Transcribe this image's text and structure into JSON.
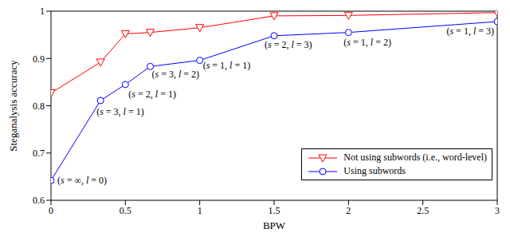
{
  "chart_data": {
    "type": "line",
    "x_label": "BPW",
    "y_label": "Steganalysis accuracy",
    "x": [
      0,
      0.333,
      0.5,
      0.667,
      1,
      1.5,
      2,
      3
    ],
    "xlim": [
      0,
      3
    ],
    "xticks": [
      0,
      0.5,
      1,
      1.5,
      2,
      2.5,
      3
    ],
    "ylim": [
      0.6,
      1
    ],
    "yticks": [
      0.6,
      0.7,
      0.8,
      0.9,
      1
    ],
    "grid": false,
    "legend": "lower right",
    "series": [
      {
        "name": "Not using subwords (i.e., word-level)",
        "color": "#ff0000",
        "marker": "triangle-down",
        "line_style": "solid",
        "values": [
          0.827,
          0.892,
          0.952,
          0.955,
          0.965,
          0.99,
          0.991,
          0.997
        ]
      },
      {
        "name": "Using subwords",
        "color": "#0000ff",
        "marker": "circle",
        "line_style": "solid",
        "values": [
          0.642,
          0.811,
          0.845,
          0.883,
          0.896,
          0.948,
          0.955,
          0.978
        ],
        "point_labels": [
          "(s = ∞, l = 0)",
          "(s = 3, l = 1)",
          "(s = 2, l = 1)",
          "(s = 3, l = 2)",
          "(s = 1, l = 1)",
          "(s = 2, l = 3)",
          "(s = 1, l = 2)",
          "(s = 1, l = 3)"
        ]
      }
    ]
  }
}
